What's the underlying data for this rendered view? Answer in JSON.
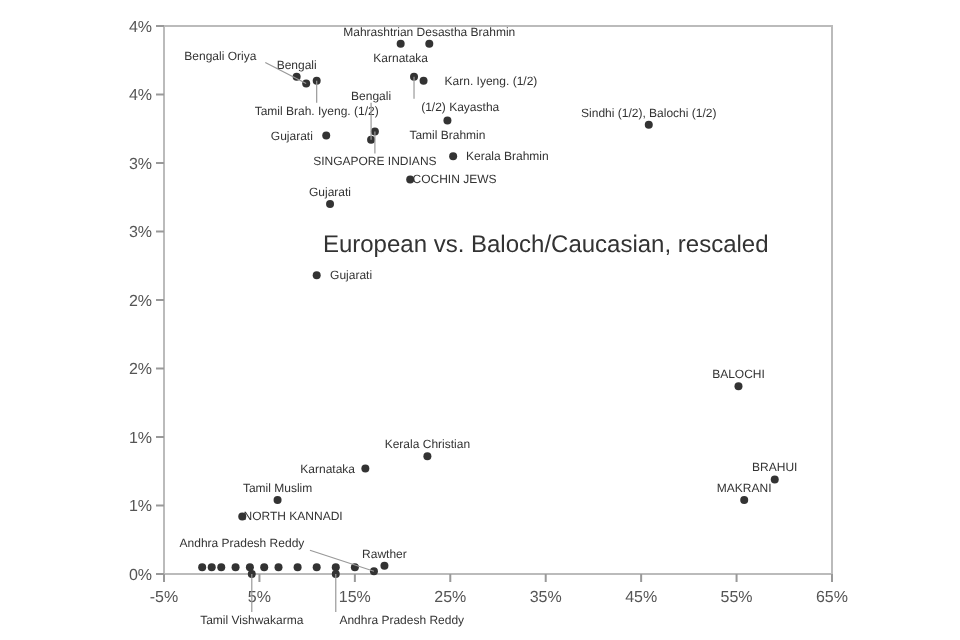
{
  "chart_data": {
    "type": "scatter",
    "title": "European vs. Baloch/Caucasian, rescaled",
    "xlim": [
      -5,
      65
    ],
    "ylim": [
      0,
      4
    ],
    "xticks": [
      {
        "value": -5,
        "label": "-5%"
      },
      {
        "value": 5,
        "label": "5%"
      },
      {
        "value": 15,
        "label": "15%"
      },
      {
        "value": 25,
        "label": "25%"
      },
      {
        "value": 35,
        "label": "35%"
      },
      {
        "value": 45,
        "label": "45%"
      },
      {
        "value": 55,
        "label": "55%"
      },
      {
        "value": 65,
        "label": "65%"
      }
    ],
    "yticks": [
      {
        "value": 0,
        "label": "0%"
      },
      {
        "value": 0.5,
        "label": "1%"
      },
      {
        "value": 1,
        "label": "1%"
      },
      {
        "value": 1.5,
        "label": "2%"
      },
      {
        "value": 2,
        "label": "2%"
      },
      {
        "value": 2.5,
        "label": "3%"
      },
      {
        "value": 3,
        "label": "3%"
      },
      {
        "value": 3.5,
        "label": "4%"
      },
      {
        "value": 4,
        "label": "4%"
      }
    ],
    "grid": false,
    "marker": "circle",
    "series": [
      {
        "color": "#333333",
        "x": [
          22.8,
          19.8,
          8.9,
          11,
          9.9,
          21.2,
          22.2,
          12,
          17.1,
          16.7,
          24.7,
          25.3,
          20.8,
          45.8,
          12.4,
          11,
          55.2,
          59,
          55.8,
          22.6,
          16.1,
          6.9,
          3.2,
          18.1,
          17,
          4.2,
          13,
          -1,
          0,
          1,
          2.5,
          4,
          5.5,
          7,
          9,
          11,
          13,
          15
        ],
        "values": [
          3.87,
          3.87,
          3.63,
          3.6,
          3.58,
          3.63,
          3.6,
          3.2,
          3.23,
          3.17,
          3.31,
          3.05,
          2.88,
          3.28,
          2.7,
          2.18,
          1.37,
          0.69,
          0.54,
          0.86,
          0.77,
          0.54,
          0.42,
          0.06,
          0.02,
          0,
          0,
          0.05,
          0.05,
          0.05,
          0.05,
          0.05,
          0.05,
          0.05,
          0.05,
          0.05,
          0.05,
          0.05
        ]
      }
    ],
    "annotations": [
      {
        "text": "Mahrashtrian Desastha Brahmin",
        "x": 22.8,
        "y": 3.87
      },
      {
        "text": "Karnataka",
        "x": 19.8,
        "y": 3.87
      },
      {
        "text": "Bengali",
        "x": 8.9,
        "y": 3.63
      },
      {
        "text": "Tamil Brah. Iyeng. (1/2)",
        "x": 11,
        "y": 3.6
      },
      {
        "text": "Bengali Oriya",
        "x": 9.9,
        "y": 3.58
      },
      {
        "text": "(1/2) Kayastha",
        "x": 21.2,
        "y": 3.63
      },
      {
        "text": "Karn. Iyeng. (1/2)",
        "x": 22.2,
        "y": 3.6
      },
      {
        "text": "Gujarati",
        "x": 12,
        "y": 3.2
      },
      {
        "text": "SINGAPORE INDIANS",
        "x": 17.1,
        "y": 3.23
      },
      {
        "text": "Bengali",
        "x": 16.7,
        "y": 3.17
      },
      {
        "text": "Tamil Brahmin",
        "x": 24.7,
        "y": 3.31
      },
      {
        "text": "Kerala Brahmin",
        "x": 25.3,
        "y": 3.05
      },
      {
        "text": "COCHIN JEWS",
        "x": 20.8,
        "y": 2.88
      },
      {
        "text": "Sindhi (1/2), Balochi (1/2)",
        "x": 45.8,
        "y": 3.28
      },
      {
        "text": "Gujarati",
        "x": 12.4,
        "y": 2.7
      },
      {
        "text": "Gujarati",
        "x": 11,
        "y": 2.18
      },
      {
        "text": "BALOCHI",
        "x": 55.2,
        "y": 1.37
      },
      {
        "text": "BRAHUI",
        "x": 59,
        "y": 0.69
      },
      {
        "text": "MAKRANI",
        "x": 55.8,
        "y": 0.54
      },
      {
        "text": "Kerala Christian",
        "x": 22.6,
        "y": 0.86
      },
      {
        "text": "Karnataka",
        "x": 16.1,
        "y": 0.77
      },
      {
        "text": "Tamil Muslim",
        "x": 6.9,
        "y": 0.54
      },
      {
        "text": "NORTH KANNADI",
        "x": 3.2,
        "y": 0.42
      },
      {
        "text": "Rawther",
        "x": 18.1,
        "y": 0.06
      },
      {
        "text": "Andhra Pradesh Reddy",
        "x": 17,
        "y": 0.02
      },
      {
        "text": "Tamil Vishwakarma",
        "x": 4.2,
        "y": 0
      },
      {
        "text": "Andhra Pradesh Reddy",
        "x": 13,
        "y": 0
      }
    ]
  }
}
